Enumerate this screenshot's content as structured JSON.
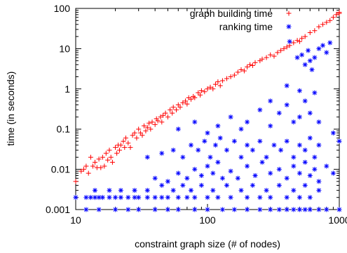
{
  "chart_data": {
    "type": "scatter",
    "xscale": "log",
    "yscale": "log",
    "xlim": [
      10,
      1000
    ],
    "ylim": [
      0.001,
      100
    ],
    "xlabel": "constraint graph size (# of nodes)",
    "ylabel": "time (in seconds)",
    "xticks": [
      {
        "value": 10,
        "label": "10"
      },
      {
        "value": 100,
        "label": "100"
      },
      {
        "value": 1000,
        "label": "1000"
      }
    ],
    "yticks": [
      {
        "value": 0.001,
        "label": "0.001"
      },
      {
        "value": 0.01,
        "label": "0.01"
      },
      {
        "value": 0.1,
        "label": "0.1"
      },
      {
        "value": 1,
        "label": "1"
      },
      {
        "value": 10,
        "label": "10"
      },
      {
        "value": 100,
        "label": "100"
      }
    ],
    "grid": false,
    "legend": {
      "position": "top-right"
    },
    "series": [
      {
        "name": "graph building time",
        "marker": "plus",
        "color": "#ff0000",
        "points": [
          [
            10,
            0.005
          ],
          [
            11,
            0.009
          ],
          [
            11.5,
            0.01
          ],
          [
            12,
            0.012
          ],
          [
            12.5,
            0.008
          ],
          [
            13,
            0.02
          ],
          [
            13.5,
            0.012
          ],
          [
            14,
            0.015
          ],
          [
            14.5,
            0.011
          ],
          [
            15,
            0.018
          ],
          [
            15.5,
            0.011
          ],
          [
            16,
            0.02
          ],
          [
            16.5,
            0.012
          ],
          [
            17,
            0.025
          ],
          [
            17.5,
            0.017
          ],
          [
            18,
            0.03
          ],
          [
            18.5,
            0.02
          ],
          [
            19,
            0.015
          ],
          [
            20,
            0.035
          ],
          [
            20.5,
            0.025
          ],
          [
            21,
            0.04
          ],
          [
            21.5,
            0.03
          ],
          [
            22,
            0.04
          ],
          [
            23,
            0.05
          ],
          [
            23.5,
            0.035
          ],
          [
            24,
            0.06
          ],
          [
            25,
            0.045
          ],
          [
            26,
            0.035
          ],
          [
            27,
            0.07
          ],
          [
            28,
            0.08
          ],
          [
            29,
            0.06
          ],
          [
            30,
            0.1
          ],
          [
            31,
            0.08
          ],
          [
            32,
            0.07
          ],
          [
            33,
            0.12
          ],
          [
            34,
            0.09
          ],
          [
            35,
            0.11
          ],
          [
            36,
            0.14
          ],
          [
            37,
            0.1
          ],
          [
            38,
            0.15
          ],
          [
            40,
            0.13
          ],
          [
            41,
            0.18
          ],
          [
            42,
            0.16
          ],
          [
            44,
            0.2
          ],
          [
            45,
            0.15
          ],
          [
            46,
            0.22
          ],
          [
            48,
            0.25
          ],
          [
            50,
            0.2
          ],
          [
            52,
            0.3
          ],
          [
            54,
            0.25
          ],
          [
            55,
            0.35
          ],
          [
            58,
            0.3
          ],
          [
            60,
            0.4
          ],
          [
            62,
            0.35
          ],
          [
            65,
            0.45
          ],
          [
            68,
            0.5
          ],
          [
            70,
            0.42
          ],
          [
            72,
            0.6
          ],
          [
            75,
            0.55
          ],
          [
            78,
            0.65
          ],
          [
            80,
            0.6
          ],
          [
            85,
            0.8
          ],
          [
            88,
            0.7
          ],
          [
            90,
            0.9
          ],
          [
            95,
            0.85
          ],
          [
            100,
            1.0
          ],
          [
            105,
            1.1
          ],
          [
            110,
            1.0
          ],
          [
            115,
            1.3
          ],
          [
            120,
            1.5
          ],
          [
            125,
            1.2
          ],
          [
            130,
            1.6
          ],
          [
            140,
            1.8
          ],
          [
            150,
            2.0
          ],
          [
            160,
            2.2
          ],
          [
            170,
            2.6
          ],
          [
            180,
            3.0
          ],
          [
            190,
            2.8
          ],
          [
            200,
            3.5
          ],
          [
            210,
            4.0
          ],
          [
            220,
            3.8
          ],
          [
            230,
            4.5
          ],
          [
            250,
            5.0
          ],
          [
            260,
            5.5
          ],
          [
            280,
            6.0
          ],
          [
            300,
            7.0
          ],
          [
            320,
            6.5
          ],
          [
            340,
            8.0
          ],
          [
            360,
            9.0
          ],
          [
            380,
            10
          ],
          [
            400,
            11
          ],
          [
            420,
            12
          ],
          [
            450,
            14
          ],
          [
            480,
            16
          ],
          [
            500,
            15
          ],
          [
            520,
            18
          ],
          [
            550,
            20
          ],
          [
            600,
            25
          ],
          [
            650,
            28
          ],
          [
            700,
            35
          ],
          [
            750,
            40
          ],
          [
            800,
            45
          ],
          [
            850,
            50
          ],
          [
            900,
            60
          ],
          [
            950,
            70
          ],
          [
            1000,
            80
          ],
          [
            1050,
            75
          ]
        ]
      },
      {
        "name": "ranking time",
        "marker": "star",
        "color": "#0000ff",
        "points": [
          [
            10,
            0.002
          ],
          [
            12,
            0.002
          ],
          [
            13,
            0.002
          ],
          [
            14,
            0.002
          ],
          [
            15,
            0.002
          ],
          [
            16,
            0.002
          ],
          [
            18,
            0.002
          ],
          [
            20,
            0.002
          ],
          [
            22,
            0.002
          ],
          [
            25,
            0.002
          ],
          [
            28,
            0.002
          ],
          [
            30,
            0.002
          ],
          [
            35,
            0.002
          ],
          [
            40,
            0.002
          ],
          [
            45,
            0.002
          ],
          [
            50,
            0.002
          ],
          [
            60,
            0.002
          ],
          [
            70,
            0.002
          ],
          [
            80,
            0.002
          ],
          [
            100,
            0.002
          ],
          [
            120,
            0.002
          ],
          [
            150,
            0.002
          ],
          [
            200,
            0.002
          ],
          [
            250,
            0.002
          ],
          [
            300,
            0.002
          ],
          [
            400,
            0.002
          ],
          [
            500,
            0.002
          ],
          [
            600,
            0.002
          ],
          [
            12,
            0.001
          ],
          [
            15,
            0.001
          ],
          [
            20,
            0.001
          ],
          [
            25,
            0.001
          ],
          [
            30,
            0.001
          ],
          [
            40,
            0.001
          ],
          [
            50,
            0.001
          ],
          [
            60,
            0.001
          ],
          [
            80,
            0.001
          ],
          [
            100,
            0.001
          ],
          [
            130,
            0.001
          ],
          [
            160,
            0.001
          ],
          [
            200,
            0.001
          ],
          [
            250,
            0.001
          ],
          [
            300,
            0.001
          ],
          [
            350,
            0.001
          ],
          [
            400,
            0.001
          ],
          [
            450,
            0.001
          ],
          [
            500,
            0.001
          ],
          [
            550,
            0.001
          ],
          [
            600,
            0.001
          ],
          [
            700,
            0.001
          ],
          [
            800,
            0.001
          ],
          [
            1000,
            0.001
          ],
          [
            14,
            0.003
          ],
          [
            18,
            0.003
          ],
          [
            22,
            0.003
          ],
          [
            28,
            0.003
          ],
          [
            35,
            0.003
          ],
          [
            45,
            0.004
          ],
          [
            55,
            0.003
          ],
          [
            65,
            0.004
          ],
          [
            75,
            0.003
          ],
          [
            90,
            0.004
          ],
          [
            110,
            0.003
          ],
          [
            140,
            0.004
          ],
          [
            180,
            0.003
          ],
          [
            220,
            0.004
          ],
          [
            280,
            0.003
          ],
          [
            350,
            0.004
          ],
          [
            450,
            0.003
          ],
          [
            550,
            0.004
          ],
          [
            700,
            0.003
          ],
          [
            40,
            0.006
          ],
          [
            50,
            0.005
          ],
          [
            60,
            0.008
          ],
          [
            70,
            0.006
          ],
          [
            80,
            0.01
          ],
          [
            90,
            0.007
          ],
          [
            100,
            0.012
          ],
          [
            110,
            0.008
          ],
          [
            120,
            0.015
          ],
          [
            130,
            0.006
          ],
          [
            150,
            0.009
          ],
          [
            170,
            0.006
          ],
          [
            200,
            0.012
          ],
          [
            230,
            0.007
          ],
          [
            260,
            0.015
          ],
          [
            300,
            0.008
          ],
          [
            350,
            0.01
          ],
          [
            400,
            0.006
          ],
          [
            450,
            0.012
          ],
          [
            500,
            0.008
          ],
          [
            550,
            0.015
          ],
          [
            600,
            0.007
          ],
          [
            650,
            0.01
          ],
          [
            700,
            0.005
          ],
          [
            800,
            0.012
          ],
          [
            900,
            0.008
          ],
          [
            35,
            0.02
          ],
          [
            45,
            0.025
          ],
          [
            55,
            0.03
          ],
          [
            65,
            0.02
          ],
          [
            75,
            0.04
          ],
          [
            85,
            0.03
          ],
          [
            95,
            0.05
          ],
          [
            105,
            0.02
          ],
          [
            115,
            0.04
          ],
          [
            125,
            0.06
          ],
          [
            140,
            0.03
          ],
          [
            160,
            0.05
          ],
          [
            180,
            0.02
          ],
          [
            200,
            0.04
          ],
          [
            220,
            0.03
          ],
          [
            250,
            0.05
          ],
          [
            280,
            0.02
          ],
          [
            320,
            0.04
          ],
          [
            360,
            0.03
          ],
          [
            400,
            0.05
          ],
          [
            450,
            0.02
          ],
          [
            500,
            0.04
          ],
          [
            550,
            0.03
          ],
          [
            600,
            0.06
          ],
          [
            650,
            0.02
          ],
          [
            700,
            0.04
          ],
          [
            60,
            0.1
          ],
          [
            80,
            0.15
          ],
          [
            100,
            0.08
          ],
          [
            120,
            0.12
          ],
          [
            150,
            0.2
          ],
          [
            180,
            0.1
          ],
          [
            200,
            0.15
          ],
          [
            250,
            0.3
          ],
          [
            300,
            0.12
          ],
          [
            350,
            0.25
          ],
          [
            400,
            0.4
          ],
          [
            450,
            0.15
          ],
          [
            500,
            0.2
          ],
          [
            550,
            0.5
          ],
          [
            600,
            0.25
          ],
          [
            650,
            0.8
          ],
          [
            620,
            3.0
          ],
          [
            700,
            0.15
          ],
          [
            900,
            0.08
          ],
          [
            1000,
            0.05
          ],
          [
            300,
            0.5
          ],
          [
            400,
            1.2
          ],
          [
            500,
            0.9
          ],
          [
            550,
            4.0
          ],
          [
            600,
            5.0
          ],
          [
            650,
            6.0
          ],
          [
            700,
            10
          ],
          [
            750,
            12
          ],
          [
            800,
            8.0
          ],
          [
            850,
            14
          ],
          [
            420,
            15
          ],
          [
            480,
            6.0
          ],
          [
            520,
            7.0
          ],
          [
            580,
            9.0
          ]
        ]
      }
    ]
  }
}
